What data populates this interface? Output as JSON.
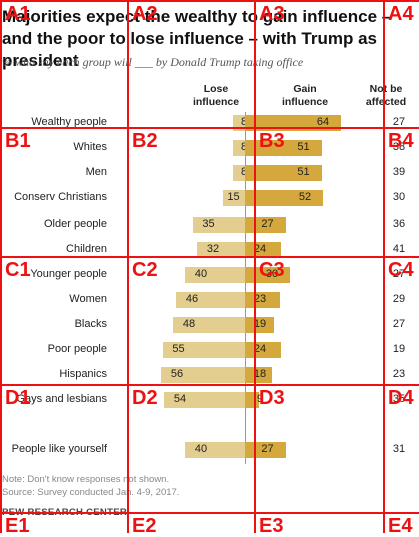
{
  "header": {
    "title": "Majorities expect the wealthy to gain influence – and the poor to lose influence – with Trump as president",
    "subtitle": "% who say each group will ___ by Donald Trump taking office"
  },
  "columns": {
    "lose": "Lose influence",
    "gain": "Gain influence",
    "neutral": "Not be affected"
  },
  "chart_data": {
    "type": "bar",
    "categories": [
      "Wealthy people",
      "Whites",
      "Men",
      "Conserv Christians",
      "Older people",
      "Children",
      "Younger people",
      "Women",
      "Blacks",
      "Poor people",
      "Hispanics",
      "Gays and lesbians",
      "People like yourself"
    ],
    "series": [
      {
        "name": "Lose influence",
        "values": [
          8,
          8,
          8,
          15,
          35,
          32,
          40,
          46,
          48,
          55,
          56,
          54,
          40
        ]
      },
      {
        "name": "Gain influence",
        "values": [
          64,
          51,
          51,
          52,
          27,
          24,
          30,
          23,
          19,
          24,
          18,
          9,
          27
        ]
      },
      {
        "name": "Not be affected",
        "values": [
          27,
          38,
          39,
          30,
          36,
          41,
          27,
          29,
          27,
          19,
          23,
          35,
          31
        ]
      }
    ]
  },
  "footer": {
    "note": "Note: Don't know responses not shown.",
    "source": "Source: Survey conducted Jan. 4-9, 2017.",
    "brand": "PEW RESEARCH CENTER"
  },
  "overlay": {
    "labels": [
      "A1",
      "A2",
      "A3",
      "A4",
      "B1",
      "B2",
      "B3",
      "B4",
      "C1",
      "C2",
      "C3",
      "C4",
      "D1",
      "D2",
      "D3",
      "D4",
      "E1",
      "E2",
      "E3",
      "E4"
    ]
  },
  "colors": {
    "lose": "#e3cd8f",
    "gain": "#d4a83c",
    "grid": "#ee1111"
  }
}
